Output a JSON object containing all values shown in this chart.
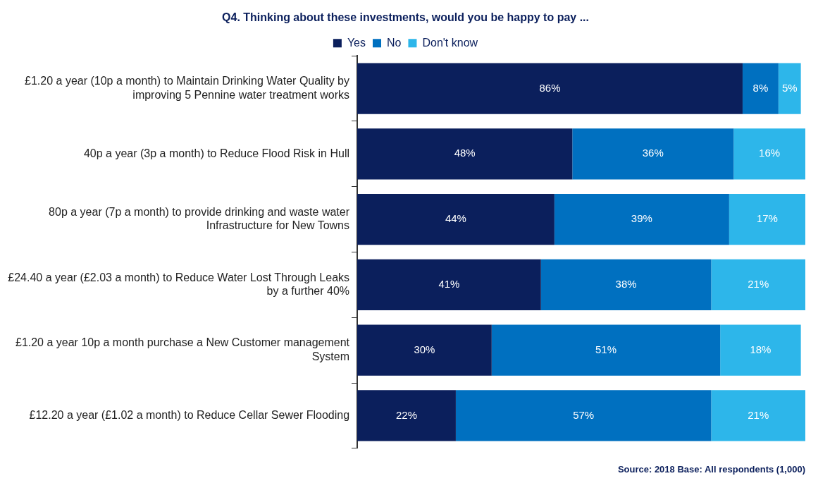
{
  "chart_data": {
    "type": "bar",
    "orientation": "horizontal",
    "stacked": true,
    "title": "Q4. Thinking about these investments, would you be happy to pay ...",
    "categories": [
      "£1.20 a year (10p a month) to Maintain Drinking Water Quality by improving 5 Pennine water treatment works",
      "40p a year (3p a month) to Reduce Flood Risk in Hull",
      "80p a year (7p a month) to provide drinking and waste water Infrastructure for New Towns",
      "£24.40 a year (£2.03 a month) to Reduce Water Lost Through Leaks by a further 40%",
      "£1.20 a year 10p a month purchase a New Customer management System",
      "£12.20 a year (£1.02 a month) to Reduce Cellar Sewer Flooding"
    ],
    "series": [
      {
        "name": "Yes",
        "color": "#0b1f5c",
        "values": [
          86,
          48,
          44,
          41,
          30,
          22
        ],
        "value_labels": [
          "86%",
          "48%",
          "44%",
          "41%",
          "30%",
          "22%"
        ]
      },
      {
        "name": "No",
        "color": "#0070c0",
        "values": [
          8,
          36,
          39,
          38,
          51,
          57
        ],
        "value_labels": [
          "8%",
          "36%",
          "39%",
          "38%",
          "51%",
          "57%"
        ]
      },
      {
        "name": "Don't know",
        "color": "#2db6ea",
        "values": [
          5,
          16,
          17,
          21,
          18,
          21
        ],
        "value_labels": [
          "5%",
          "16%",
          "17%",
          "21%",
          "18%",
          "21%"
        ]
      }
    ],
    "tick_labels": "y",
    "legend": "top",
    "grid": false,
    "annotations": [
      "Source: 2018   Base: All respondents (1,000)"
    ]
  }
}
